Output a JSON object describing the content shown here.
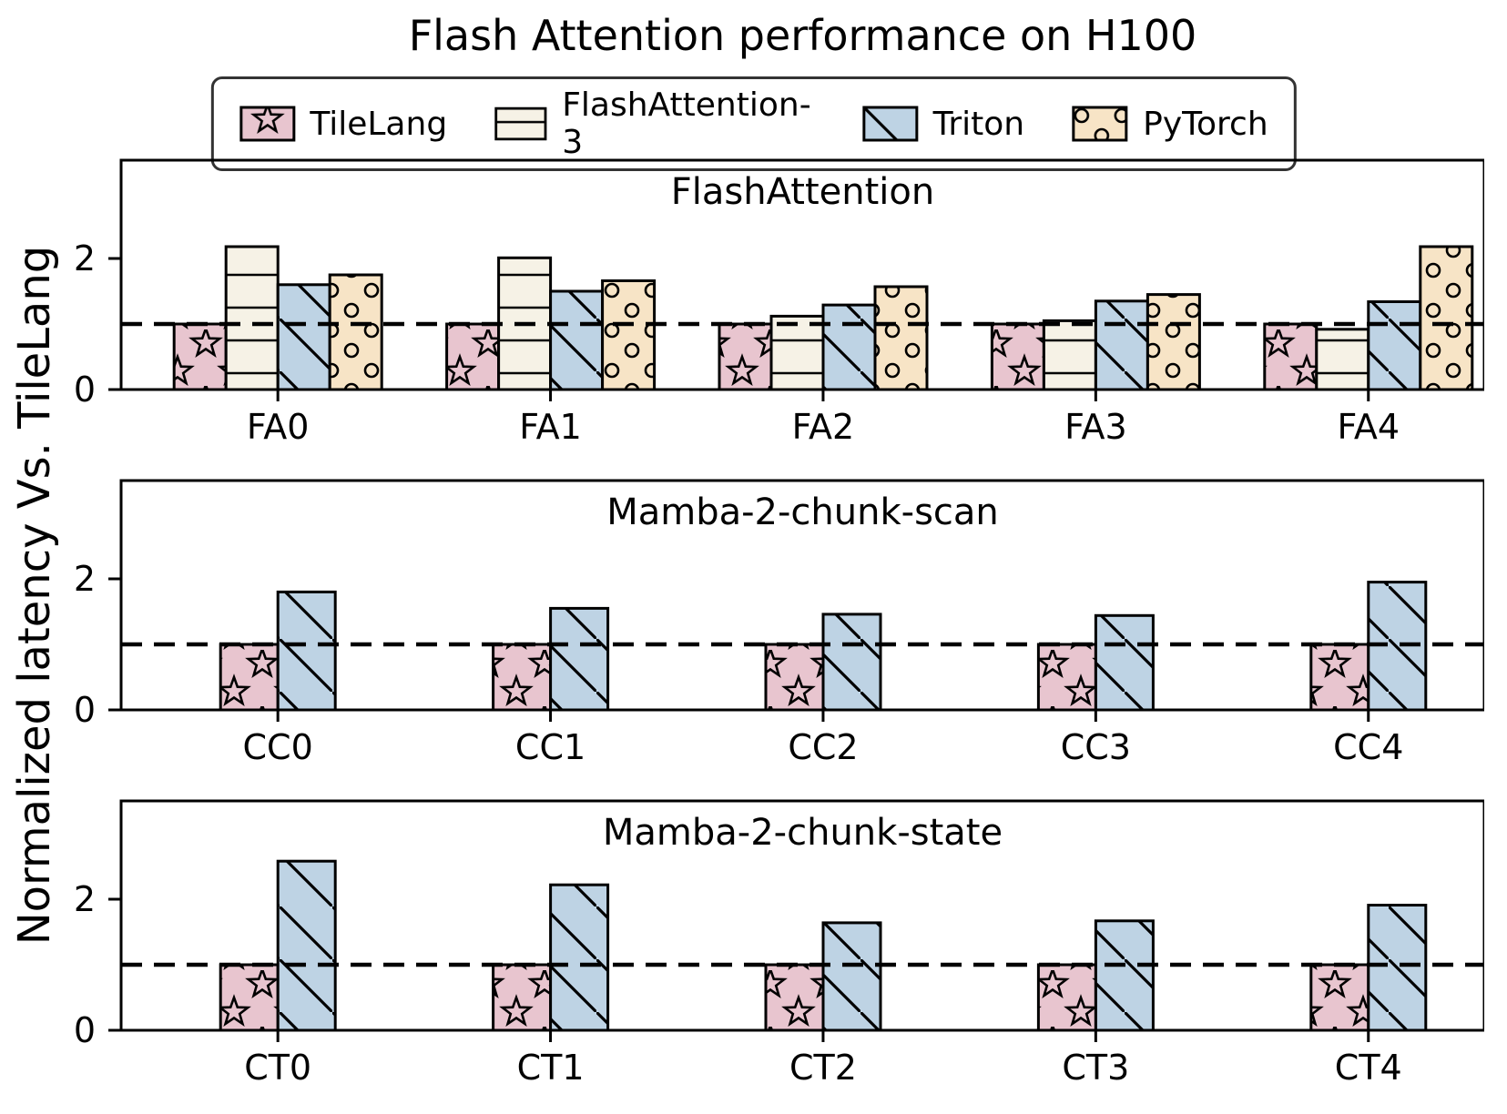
{
  "figure": {
    "title": "Flash Attention performance on H100",
    "ylabel": "Normalized latency Vs. TileLang",
    "background": "#ffffff",
    "text_color": "#000000"
  },
  "legend": {
    "entries": [
      {
        "label": "TileLang",
        "color": "#e8c5cf",
        "hatch": "star",
        "edge": "#000000"
      },
      {
        "label": "FlashAttention-3",
        "color": "#f6f2e6",
        "hatch": "hline",
        "edge": "#000000"
      },
      {
        "label": "Triton",
        "color": "#bed3e4",
        "hatch": "backslash",
        "edge": "#000000"
      },
      {
        "label": "PyTorch",
        "color": "#f7e4c6",
        "hatch": "circle",
        "edge": "#000000"
      }
    ],
    "border_color": "#333333"
  },
  "chart_data": [
    {
      "type": "bar",
      "title": "FlashAttention",
      "categories": [
        "FA0",
        "FA1",
        "FA2",
        "FA3",
        "FA4"
      ],
      "series": [
        {
          "name": "TileLang",
          "values": [
            1.0,
            1.0,
            1.0,
            1.0,
            1.0
          ]
        },
        {
          "name": "FlashAttention-3",
          "values": [
            2.18,
            2.01,
            1.12,
            1.05,
            0.92
          ]
        },
        {
          "name": "Triton",
          "values": [
            1.6,
            1.5,
            1.29,
            1.35,
            1.34
          ]
        },
        {
          "name": "PyTorch",
          "values": [
            1.75,
            1.66,
            1.57,
            1.45,
            2.18
          ]
        }
      ],
      "ylim": [
        0,
        3.5
      ],
      "yticks": [
        0,
        2
      ],
      "baseline": 1.0,
      "grid": false,
      "baseline_style": "dashed-black"
    },
    {
      "type": "bar",
      "title": "Mamba-2-chunk-scan",
      "categories": [
        "CC0",
        "CC1",
        "CC2",
        "CC3",
        "CC4"
      ],
      "series": [
        {
          "name": "TileLang",
          "values": [
            1.0,
            1.0,
            1.0,
            1.0,
            1.0
          ]
        },
        {
          "name": "Triton",
          "values": [
            1.8,
            1.55,
            1.46,
            1.44,
            1.95
          ]
        }
      ],
      "ylim": [
        0,
        3.5
      ],
      "yticks": [
        0,
        2
      ],
      "baseline": 1.0,
      "grid": false,
      "baseline_style": "dashed-black"
    },
    {
      "type": "bar",
      "title": "Mamba-2-chunk-state",
      "categories": [
        "CT0",
        "CT1",
        "CT2",
        "CT3",
        "CT4"
      ],
      "series": [
        {
          "name": "TileLang",
          "values": [
            1.0,
            1.0,
            1.0,
            1.0,
            1.0
          ]
        },
        {
          "name": "Triton",
          "values": [
            2.58,
            2.22,
            1.64,
            1.67,
            1.91
          ]
        }
      ],
      "ylim": [
        0,
        3.5
      ],
      "yticks": [
        0,
        2
      ],
      "baseline": 1.0,
      "grid": false,
      "baseline_style": "dashed-black"
    }
  ]
}
